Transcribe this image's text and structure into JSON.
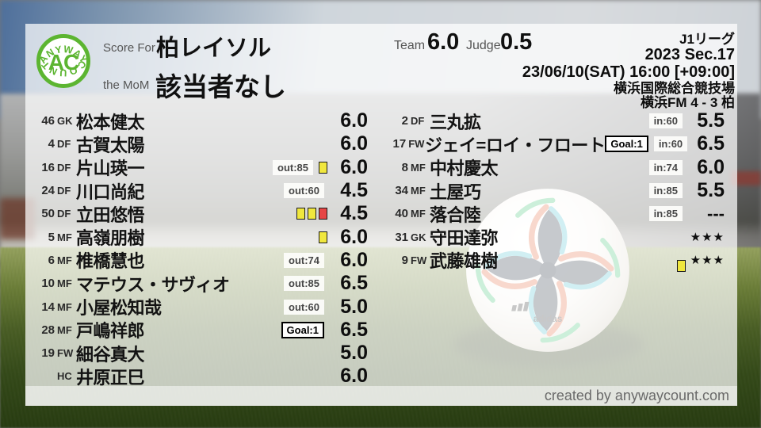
{
  "branding": {
    "logo_top": "ANYWAY",
    "logo_center": "AC",
    "logo_bottom": "COUNT",
    "credit": "created by anywaycount.com"
  },
  "colors": {
    "brand_green": "#5cb531",
    "card_yellow": "#f0e73e",
    "card_red": "#e64545",
    "panel_white": "rgba(255,255,255,0.72)"
  },
  "header": {
    "score_for_label": "Score For",
    "team_name": "柏レイソル",
    "mom_label": "the MoM",
    "mom_value": "該当者なし",
    "team_label": "Team",
    "team_score": "6.0",
    "judge_label": "Judge",
    "judge_score": "0.5"
  },
  "match": {
    "league": "J1リーグ",
    "season": "2023 Sec.17",
    "datetime": "23/06/10(SAT) 16:00 [+09:00]",
    "venue": "横浜国際総合競技場",
    "result": "横浜FM 4 - 3 柏"
  },
  "players_left": [
    {
      "num": "46",
      "pos": "GK",
      "name": "松本健太",
      "score": "6.0"
    },
    {
      "num": "4",
      "pos": "DF",
      "name": "古賀太陽",
      "score": "6.0"
    },
    {
      "num": "16",
      "pos": "DF",
      "name": "片山瑛一",
      "sub": "out:85",
      "cards": [
        "yellow"
      ],
      "score": "6.0"
    },
    {
      "num": "24",
      "pos": "DF",
      "name": "川口尚紀",
      "sub": "out:60",
      "score": "4.5"
    },
    {
      "num": "50",
      "pos": "DF",
      "name": "立田悠悟",
      "cards": [
        "yellow",
        "yellow",
        "red"
      ],
      "score": "4.5"
    },
    {
      "num": "5",
      "pos": "MF",
      "name": "高嶺朋樹",
      "cards": [
        "yellow"
      ],
      "score": "6.0"
    },
    {
      "num": "6",
      "pos": "MF",
      "name": "椎橋慧也",
      "sub": "out:74",
      "score": "6.0"
    },
    {
      "num": "10",
      "pos": "MF",
      "name": "マテウス・サヴィオ",
      "sub": "out:85",
      "score": "6.5"
    },
    {
      "num": "14",
      "pos": "MF",
      "name": "小屋松知哉",
      "sub": "out:60",
      "score": "5.0"
    },
    {
      "num": "28",
      "pos": "MF",
      "name": "戸嶋祥郎",
      "goal": "Goal:1",
      "score": "6.5"
    },
    {
      "num": "19",
      "pos": "FW",
      "name": "細谷真大",
      "score": "5.0"
    },
    {
      "num": "",
      "pos": "HC",
      "name": "井原正巳",
      "score": "6.0"
    }
  ],
  "players_right": [
    {
      "num": "2",
      "pos": "DF",
      "name": "三丸拡",
      "sub": "in:60",
      "score": "5.5"
    },
    {
      "num": "17",
      "pos": "FW",
      "name": "ジェイ=ロイ・フロート",
      "goal": "Goal:1",
      "sub": "in:60",
      "score": "6.5"
    },
    {
      "num": "8",
      "pos": "MF",
      "name": "中村慶太",
      "sub": "in:74",
      "score": "6.0"
    },
    {
      "num": "34",
      "pos": "MF",
      "name": "土屋巧",
      "sub": "in:85",
      "score": "5.5"
    },
    {
      "num": "40",
      "pos": "MF",
      "name": "落合陸",
      "sub": "in:85",
      "score": "---"
    },
    {
      "num": "31",
      "pos": "GK",
      "name": "守田達弥",
      "score": "★★★"
    },
    {
      "num": "9",
      "pos": "FW",
      "name": "武藤雄樹",
      "cards": [
        "yellow"
      ],
      "card_low": true,
      "score": "★★★"
    }
  ]
}
